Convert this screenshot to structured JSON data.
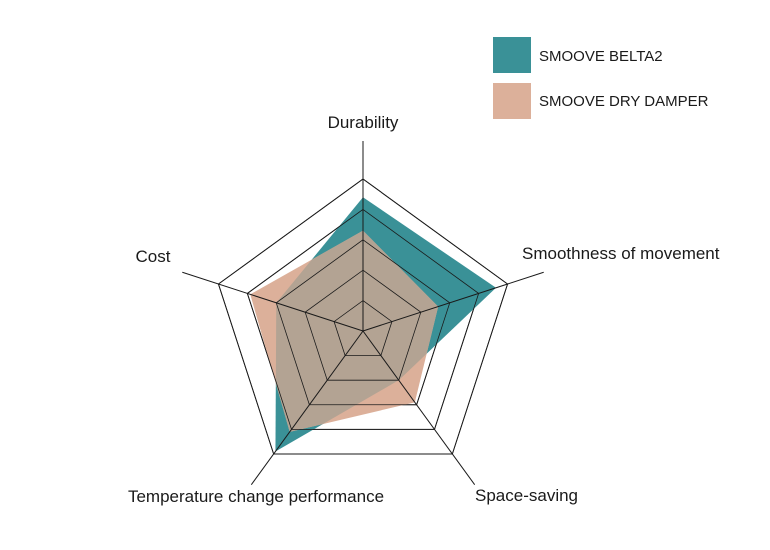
{
  "chart_data": {
    "type": "radar",
    "axes": [
      "Durability",
      "Smoothness of movement",
      "Space-saving",
      "Temperature change performance",
      "Cost"
    ],
    "levels": 5,
    "max": 5,
    "series": [
      {
        "name": "SMOOVE BELTA2",
        "color": "#3a9197",
        "values": [
          4.4,
          4.6,
          2.0,
          4.9,
          3.0
        ]
      },
      {
        "name": "SMOOVE DRY DAMPER",
        "color": "#dcb09a",
        "values": [
          3.3,
          2.6,
          2.9,
          4.1,
          3.9
        ]
      }
    ],
    "overlap_color": "#b3a393",
    "legend_position": "top-right"
  }
}
